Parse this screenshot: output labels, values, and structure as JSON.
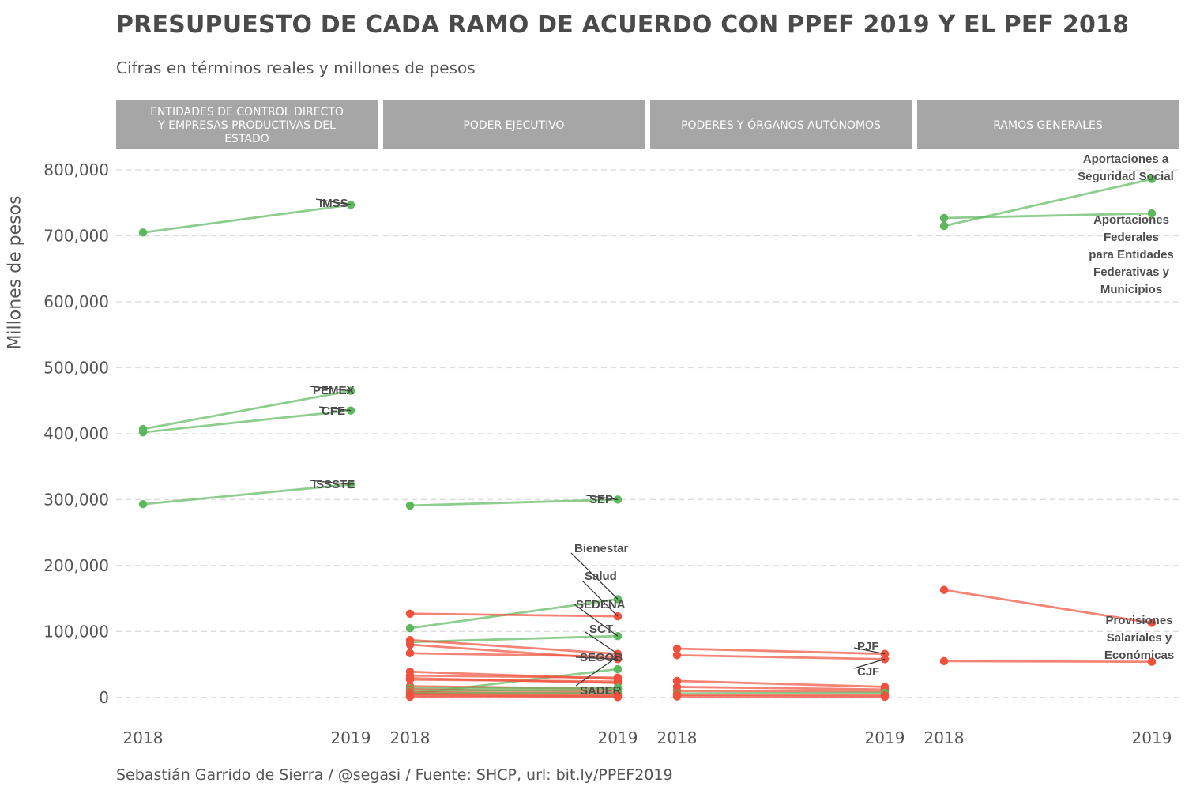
{
  "title": "PRESUPUESTO DE CADA RAMO DE ACUERDO CON PPEF 2019 Y EL PEF 2018",
  "subtitle": "Cifras en términos reales y millones de pesos",
  "caption": "Sebastián Garrido de Sierra / @segasi / Fuente: SHCP, url: bit.ly/PPEF2019",
  "colors": {
    "increase": "#5cb85c",
    "decrease": "#f0503c",
    "strip": "#a6a6a6",
    "grid": "#dcdcdc",
    "label": "#4d4d4d"
  },
  "chart_data": {
    "type": "line",
    "xlabel": "",
    "ylabel": "Millones de pesos",
    "x": [
      "2018",
      "2019"
    ],
    "ylim": [
      -35000,
      830000
    ],
    "yticks": [
      0,
      100000,
      200000,
      300000,
      400000,
      500000,
      600000,
      700000,
      800000
    ],
    "ytick_labels": [
      "0",
      "100,000",
      "200,000",
      "300,000",
      "400,000",
      "500,000",
      "600,000",
      "700,000",
      "800,000"
    ],
    "grid": true,
    "legend": "none",
    "panels": [
      {
        "title": "ENTIDADES DE CONTROL DIRECTO Y EMPRESAS PRODUCTIVAS DEL ESTADO",
        "title_lines": [
          "ENTIDADES DE CONTROL DIRECTO",
          "Y EMPRESAS PRODUCTIVAS DEL",
          "ESTADO"
        ],
        "series": [
          {
            "name": "IMSS",
            "values": [
              705000,
              747000
            ],
            "trend": "increase"
          },
          {
            "name": "PEMEX",
            "values": [
              407000,
              465000
            ],
            "trend": "increase"
          },
          {
            "name": "CFE",
            "values": [
              402000,
              435000
            ],
            "trend": "increase"
          },
          {
            "name": "ISSSTE",
            "values": [
              293000,
              323000
            ],
            "trend": "increase"
          }
        ]
      },
      {
        "title": "PODER EJECUTIVO",
        "title_lines": [
          "PODER EJECUTIVO"
        ],
        "series": [
          {
            "name": "SEP",
            "values": [
              291000,
              300000
            ],
            "trend": "increase"
          },
          {
            "name": "Bienestar",
            "values": [
              105000,
              149000
            ],
            "trend": "increase"
          },
          {
            "name": "Salud",
            "values": [
              127000,
              123000
            ],
            "trend": "decrease"
          },
          {
            "name": "SEDENA",
            "values": [
              84000,
              93000
            ],
            "trend": "increase"
          },
          {
            "name": "SCT",
            "values": [
              87000,
              66000
            ],
            "trend": "decrease"
          },
          {
            "name": "SEGOB",
            "values": [
              80000,
              58000
            ],
            "trend": "decrease"
          },
          {
            "name": "SADER",
            "values": [
              67000,
              62000
            ],
            "trend": "decrease"
          },
          {
            "values": [
              5000,
              43000
            ],
            "trend": "increase"
          },
          {
            "values": [
              39000,
              28000
            ],
            "trend": "decrease"
          },
          {
            "values": [
              33000,
              30000
            ],
            "trend": "decrease"
          },
          {
            "values": [
              29000,
              22000
            ],
            "trend": "decrease"
          },
          {
            "values": [
              27000,
              24000
            ],
            "trend": "decrease"
          },
          {
            "values": [
              17000,
              13000
            ],
            "trend": "decrease"
          },
          {
            "values": [
              14000,
              15000
            ],
            "trend": "increase"
          },
          {
            "values": [
              12000,
              9000
            ],
            "trend": "decrease"
          },
          {
            "values": [
              10000,
              12000
            ],
            "trend": "increase"
          },
          {
            "values": [
              8000,
              6000
            ],
            "trend": "decrease"
          },
          {
            "values": [
              6000,
              7000
            ],
            "trend": "increase"
          },
          {
            "values": [
              5000,
              3000
            ],
            "trend": "decrease"
          },
          {
            "values": [
              3000,
              2000
            ],
            "trend": "decrease"
          },
          {
            "values": [
              1000,
              500
            ],
            "trend": "decrease"
          }
        ]
      },
      {
        "title": "PODERES Y ÓRGANOS AUTÓNOMOS",
        "title_lines": [
          "PODERES Y ÓRGANOS AUTÓNOMOS"
        ],
        "series": [
          {
            "name": "PJF",
            "values": [
              74000,
              66000
            ],
            "trend": "decrease"
          },
          {
            "name": "CJF",
            "values": [
              64000,
              58000
            ],
            "trend": "decrease"
          },
          {
            "values": [
              25000,
              16000
            ],
            "trend": "decrease"
          },
          {
            "values": [
              16000,
              12000
            ],
            "trend": "decrease"
          },
          {
            "values": [
              10000,
              9000
            ],
            "trend": "decrease"
          },
          {
            "values": [
              6000,
              7000
            ],
            "trend": "increase"
          },
          {
            "values": [
              4000,
              3000
            ],
            "trend": "decrease"
          },
          {
            "values": [
              1500,
              1000
            ],
            "trend": "decrease"
          }
        ]
      },
      {
        "title": "RAMOS GENERALES",
        "title_lines": [
          "RAMOS GENERALES"
        ],
        "series": [
          {
            "name": "Aportaciones a Seguridad Social",
            "values": [
              715000,
              786000
            ],
            "trend": "increase"
          },
          {
            "name": "Aportaciones Federales para Entidades Federativas y Municipios",
            "values": [
              727000,
              734000
            ],
            "trend": "increase"
          },
          {
            "name": "Provisiones Salariales y Económicas",
            "values": [
              163000,
              113000
            ],
            "trend": "decrease"
          },
          {
            "values": [
              55000,
              54000
            ],
            "trend": "decrease"
          }
        ]
      }
    ],
    "annotations": [
      {
        "panel": 0,
        "lines": [
          "IMSS"
        ]
      },
      {
        "panel": 0,
        "lines": [
          "PEMEX"
        ]
      },
      {
        "panel": 0,
        "lines": [
          "CFE"
        ]
      },
      {
        "panel": 0,
        "lines": [
          "ISSSTE"
        ]
      },
      {
        "panel": 1,
        "lines": [
          "SEP"
        ]
      },
      {
        "panel": 1,
        "lines": [
          "Bienestar"
        ]
      },
      {
        "panel": 1,
        "lines": [
          "Salud"
        ]
      },
      {
        "panel": 1,
        "lines": [
          "SEDENA"
        ]
      },
      {
        "panel": 1,
        "lines": [
          "SCT"
        ]
      },
      {
        "panel": 1,
        "lines": [
          "SEGOB"
        ]
      },
      {
        "panel": 1,
        "lines": [
          "SADER"
        ]
      },
      {
        "panel": 2,
        "lines": [
          "PJF"
        ]
      },
      {
        "panel": 2,
        "lines": [
          "CJF"
        ]
      },
      {
        "panel": 3,
        "lines": [
          "Aportaciones a",
          "Seguridad Social"
        ]
      },
      {
        "panel": 3,
        "lines": [
          "Aportaciones",
          "Federales",
          "para Entidades",
          "Federativas y",
          "Municipios"
        ]
      },
      {
        "panel": 3,
        "lines": [
          "Provisiones",
          "Salariales y",
          "Económicas"
        ]
      }
    ]
  }
}
